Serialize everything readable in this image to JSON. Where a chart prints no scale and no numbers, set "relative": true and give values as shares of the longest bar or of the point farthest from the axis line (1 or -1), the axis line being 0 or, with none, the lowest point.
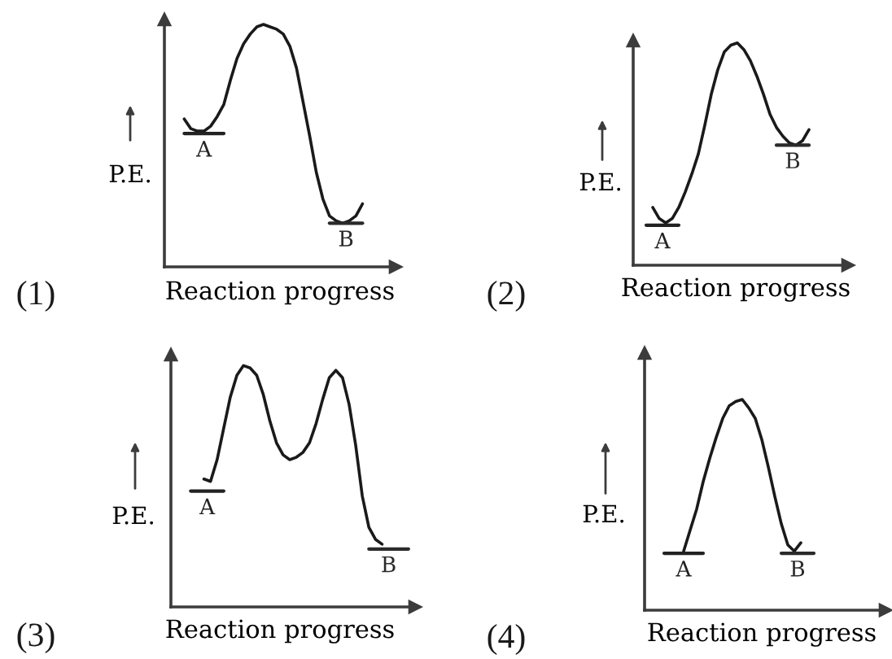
{
  "chart_data": [
    {
      "type": "line",
      "title": "(1)",
      "xlabel": "Reaction progress",
      "ylabel": "P.E.",
      "relative": true,
      "categories": [
        null,
        null,
        null,
        null,
        null,
        null,
        null,
        null,
        null,
        null,
        null,
        null,
        null,
        null,
        null,
        null,
        null,
        null,
        null,
        null,
        null,
        null,
        null,
        null,
        null,
        null,
        null,
        null,
        null,
        null,
        null,
        null,
        null,
        null,
        null,
        null
      ],
      "series": [
        {
          "color": "#1a1a1a",
          "values": [
            null,
            null,
            null,
            0.61,
            0.57,
            0.56,
            0.56,
            0.58,
            0.62,
            0.67,
            0.77,
            0.86,
            0.92,
            0.96,
            0.99,
            1.0,
            0.99,
            0.98,
            0.96,
            0.91,
            0.82,
            0.68,
            0.54,
            0.39,
            0.28,
            0.21,
            0.19,
            0.18,
            0.19,
            0.21,
            0.26,
            null,
            null,
            null,
            null,
            null
          ]
        },
        {
          "name": "A",
          "color": "#222222",
          "values": [
            null,
            null,
            null,
            0.55,
            0.55,
            0.55,
            0.55,
            0.55,
            0.55,
            0.55,
            null,
            null,
            null,
            null,
            null,
            null,
            null,
            null,
            null,
            null,
            null,
            null,
            null,
            null,
            null,
            null,
            null,
            null,
            null,
            null,
            null,
            null,
            null,
            null,
            null,
            null
          ]
        },
        {
          "name": "B",
          "color": "#2a2a2a",
          "values": [
            null,
            null,
            null,
            null,
            null,
            null,
            null,
            null,
            null,
            null,
            null,
            null,
            null,
            null,
            null,
            null,
            null,
            null,
            null,
            null,
            null,
            null,
            null,
            null,
            null,
            0.18,
            0.18,
            0.18,
            0.18,
            0.18,
            0.18,
            null,
            null,
            null,
            null,
            null
          ]
        }
      ]
    },
    {
      "type": "line",
      "title": "(2)",
      "xlabel": "Reaction progress",
      "ylabel": "P.E.",
      "relative": true,
      "categories": [
        null,
        null,
        null,
        null,
        null,
        null,
        null,
        null,
        null,
        null,
        null,
        null,
        null,
        null,
        null,
        null,
        null,
        null,
        null,
        null,
        null,
        null,
        null,
        null,
        null,
        null,
        null,
        null,
        null,
        null,
        null,
        null,
        null,
        null
      ],
      "series": [
        {
          "color": "#1a1a1a",
          "values": [
            null,
            null,
            null,
            0.26,
            0.21,
            0.19,
            0.21,
            0.26,
            0.33,
            0.41,
            0.5,
            0.63,
            0.77,
            0.88,
            0.96,
            0.99,
            1.0,
            0.97,
            0.92,
            0.85,
            0.77,
            0.68,
            0.62,
            0.58,
            0.55,
            0.54,
            0.56,
            0.61,
            null,
            null,
            null,
            null,
            null,
            null
          ]
        },
        {
          "name": "A",
          "color": "#222222",
          "values": [
            null,
            null,
            0.18,
            0.18,
            0.18,
            0.18,
            0.18,
            0.18,
            null,
            null,
            null,
            null,
            null,
            null,
            null,
            null,
            null,
            null,
            null,
            null,
            null,
            null,
            null,
            null,
            null,
            null,
            null,
            null,
            null,
            null,
            null,
            null,
            null,
            null
          ]
        },
        {
          "name": "B",
          "color": "#2a2a2a",
          "values": [
            null,
            null,
            null,
            null,
            null,
            null,
            null,
            null,
            null,
            null,
            null,
            null,
            null,
            null,
            null,
            null,
            null,
            null,
            null,
            null,
            null,
            null,
            0.54,
            0.54,
            0.54,
            0.54,
            0.54,
            0.54,
            null,
            null,
            null,
            null,
            null,
            null
          ]
        }
      ]
    },
    {
      "type": "line",
      "title": "(3)",
      "xlabel": "Reaction progress",
      "ylabel": "P.E.",
      "relative": true,
      "categories": [
        null,
        null,
        null,
        null,
        null,
        null,
        null,
        null,
        null,
        null,
        null,
        null,
        null,
        null,
        null,
        null,
        null,
        null,
        null,
        null,
        null,
        null,
        null,
        null,
        null,
        null,
        null,
        null,
        null,
        null,
        null,
        null,
        null,
        null,
        null,
        null,
        null,
        null
      ],
      "series": [
        {
          "color": "#1a1a1a",
          "values": [
            null,
            null,
            null,
            null,
            null,
            0.53,
            0.52,
            0.61,
            0.74,
            0.87,
            0.96,
            1.0,
            0.99,
            0.96,
            0.88,
            0.77,
            0.68,
            0.63,
            0.61,
            0.62,
            0.64,
            0.68,
            0.76,
            0.86,
            0.95,
            0.98,
            0.95,
            0.84,
            0.67,
            0.46,
            0.33,
            0.28,
            0.26,
            null,
            null,
            null,
            null,
            null
          ]
        },
        {
          "name": "A",
          "color": "#222222",
          "values": [
            null,
            null,
            null,
            0.48,
            0.48,
            0.48,
            0.48,
            0.48,
            0.48,
            null,
            null,
            null,
            null,
            null,
            null,
            null,
            null,
            null,
            null,
            null,
            null,
            null,
            null,
            null,
            null,
            null,
            null,
            null,
            null,
            null,
            null,
            null,
            null,
            null,
            null,
            null,
            null,
            null
          ]
        },
        {
          "name": "B",
          "color": "#2a2a2a",
          "values": [
            null,
            null,
            null,
            null,
            null,
            null,
            null,
            null,
            null,
            null,
            null,
            null,
            null,
            null,
            null,
            null,
            null,
            null,
            null,
            null,
            null,
            null,
            null,
            null,
            null,
            null,
            null,
            null,
            null,
            null,
            0.24,
            0.24,
            0.24,
            0.24,
            0.24,
            0.24,
            0.24,
            null
          ]
        }
      ]
    },
    {
      "type": "line",
      "title": "(4)",
      "xlabel": "Reaction progress",
      "ylabel": "P.E.",
      "relative": true,
      "categories": [
        null,
        null,
        null,
        null,
        null,
        null,
        null,
        null,
        null,
        null,
        null,
        null,
        null,
        null,
        null,
        null,
        null,
        null,
        null,
        null,
        null,
        null,
        null,
        null,
        null,
        null,
        null,
        null,
        null,
        null,
        null,
        null,
        null,
        null,
        null,
        null,
        null,
        null
      ],
      "series": [
        {
          "color": "#1a1a1a",
          "values": [
            null,
            null,
            null,
            null,
            null,
            null,
            0.28,
            0.38,
            0.48,
            0.61,
            0.72,
            0.82,
            0.91,
            0.97,
            0.99,
            1.0,
            0.96,
            0.91,
            0.81,
            0.68,
            0.54,
            0.41,
            0.31,
            0.28,
            0.32,
            null,
            null,
            null,
            null,
            null,
            null,
            null,
            null,
            null,
            null,
            null,
            null,
            null
          ]
        },
        {
          "name": "A",
          "color": "#222222",
          "values": [
            null,
            null,
            null,
            0.27,
            0.27,
            0.27,
            0.27,
            0.27,
            0.27,
            0.27,
            null,
            null,
            null,
            null,
            null,
            null,
            null,
            null,
            null,
            null,
            null,
            null,
            null,
            null,
            null,
            null,
            null,
            null,
            null,
            null,
            null,
            null,
            null,
            null,
            null,
            null,
            null,
            null
          ]
        },
        {
          "name": "B",
          "color": "#2a2a2a",
          "values": [
            null,
            null,
            null,
            null,
            null,
            null,
            null,
            null,
            null,
            null,
            null,
            null,
            null,
            null,
            null,
            null,
            null,
            null,
            null,
            null,
            null,
            0.27,
            0.27,
            0.27,
            0.27,
            0.27,
            0.27,
            null,
            null,
            null,
            null,
            null,
            null,
            null,
            null,
            null,
            null,
            null
          ]
        }
      ]
    }
  ]
}
